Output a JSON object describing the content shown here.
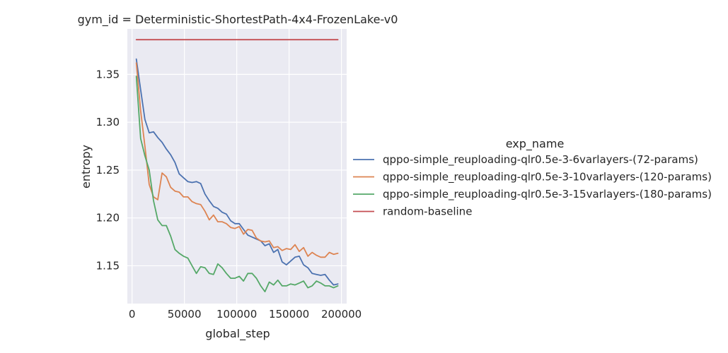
{
  "chart_data": {
    "type": "line",
    "title": "gym_id = Deterministic-ShortestPath-4x4-FrozenLake-v0",
    "xlabel": "global_step",
    "ylabel": "entropy",
    "xlim": [
      -4500,
      205000
    ],
    "ylim": [
      1.1105,
      1.3975
    ],
    "xticks": [
      0,
      50000,
      100000,
      150000,
      200000
    ],
    "xtick_labels": [
      "0",
      "50000",
      "100000",
      "150000",
      "200000"
    ],
    "yticks": [
      1.15,
      1.2,
      1.25,
      1.3,
      1.35
    ],
    "ytick_labels": [
      "1.15",
      "1.20",
      "1.25",
      "1.30",
      "1.35"
    ],
    "grid": true,
    "legend": {
      "title": "exp_name",
      "placement": "right"
    },
    "series": [
      {
        "name": "qppo-simple_reuploading-qlr0.5e-3-6varlayers-(72-params)",
        "color": "#4c72b0",
        "x": [
          4096,
          8192,
          12288,
          16384,
          20480,
          24576,
          28672,
          32768,
          36864,
          40960,
          45056,
          49152,
          53248,
          57344,
          61440,
          65536,
          69632,
          73728,
          77824,
          81920,
          86016,
          90112,
          94208,
          98304,
          102400,
          106496,
          110592,
          114688,
          118784,
          122880,
          126976,
          131072,
          135168,
          139264,
          143360,
          147456,
          151552,
          155648,
          159744,
          163840,
          167936,
          172032,
          176128,
          180224,
          184320,
          188416,
          192512,
          196608
        ],
        "y": [
          1.366,
          1.334,
          1.303,
          1.289,
          1.29,
          1.284,
          1.279,
          1.272,
          1.266,
          1.258,
          1.246,
          1.242,
          1.238,
          1.237,
          1.238,
          1.236,
          1.225,
          1.218,
          1.212,
          1.21,
          1.206,
          1.204,
          1.197,
          1.194,
          1.194,
          1.188,
          1.182,
          1.18,
          1.178,
          1.176,
          1.171,
          1.173,
          1.164,
          1.167,
          1.154,
          1.151,
          1.155,
          1.159,
          1.16,
          1.151,
          1.148,
          1.142,
          1.141,
          1.14,
          1.141,
          1.135,
          1.13,
          1.131
        ]
      },
      {
        "name": "qppo-simple_reuploading-qlr0.5e-3-10varlayers-(120-params)",
        "color": "#dd8452",
        "x": [
          4096,
          8192,
          12288,
          16384,
          20480,
          24576,
          28672,
          32768,
          36864,
          40960,
          45056,
          49152,
          53248,
          57344,
          61440,
          65536,
          69632,
          73728,
          77824,
          81920,
          86016,
          90112,
          94208,
          98304,
          102400,
          106496,
          110592,
          114688,
          118784,
          122880,
          126976,
          131072,
          135168,
          139264,
          143360,
          147456,
          151552,
          155648,
          159744,
          163840,
          167936,
          172032,
          176128,
          180224,
          184320,
          188416,
          192512,
          196608
        ],
        "y": [
          1.362,
          1.312,
          1.275,
          1.235,
          1.222,
          1.219,
          1.247,
          1.243,
          1.232,
          1.228,
          1.227,
          1.222,
          1.222,
          1.217,
          1.215,
          1.214,
          1.207,
          1.198,
          1.203,
          1.196,
          1.196,
          1.194,
          1.19,
          1.189,
          1.191,
          1.183,
          1.188,
          1.187,
          1.179,
          1.176,
          1.175,
          1.176,
          1.169,
          1.17,
          1.166,
          1.168,
          1.167,
          1.172,
          1.165,
          1.169,
          1.16,
          1.164,
          1.161,
          1.159,
          1.159,
          1.164,
          1.162,
          1.163
        ]
      },
      {
        "name": "qppo-simple_reuploading-qlr0.5e-3-15varlayers-(180-params)",
        "color": "#55a868",
        "x": [
          4096,
          8192,
          12288,
          16384,
          20480,
          24576,
          28672,
          32768,
          36864,
          40960,
          45056,
          49152,
          53248,
          57344,
          61440,
          65536,
          69632,
          73728,
          77824,
          81920,
          86016,
          90112,
          94208,
          98304,
          102400,
          106496,
          110592,
          114688,
          118784,
          122880,
          126976,
          131072,
          135168,
          139264,
          143360,
          147456,
          151552,
          155648,
          159744,
          163840,
          167936,
          172032,
          176128,
          180224,
          184320,
          188416,
          192512,
          196608
        ],
        "y": [
          1.348,
          1.283,
          1.265,
          1.25,
          1.218,
          1.198,
          1.192,
          1.192,
          1.181,
          1.167,
          1.163,
          1.16,
          1.158,
          1.15,
          1.142,
          1.149,
          1.148,
          1.142,
          1.141,
          1.152,
          1.148,
          1.142,
          1.137,
          1.137,
          1.139,
          1.134,
          1.142,
          1.142,
          1.137,
          1.129,
          1.123,
          1.133,
          1.13,
          1.135,
          1.129,
          1.129,
          1.131,
          1.13,
          1.132,
          1.134,
          1.127,
          1.129,
          1.134,
          1.132,
          1.129,
          1.129,
          1.127,
          1.129
        ]
      },
      {
        "name": "random-baseline",
        "color": "#c44e52",
        "x": [
          4096,
          196608
        ],
        "y": [
          1.3863,
          1.3863
        ]
      }
    ]
  }
}
